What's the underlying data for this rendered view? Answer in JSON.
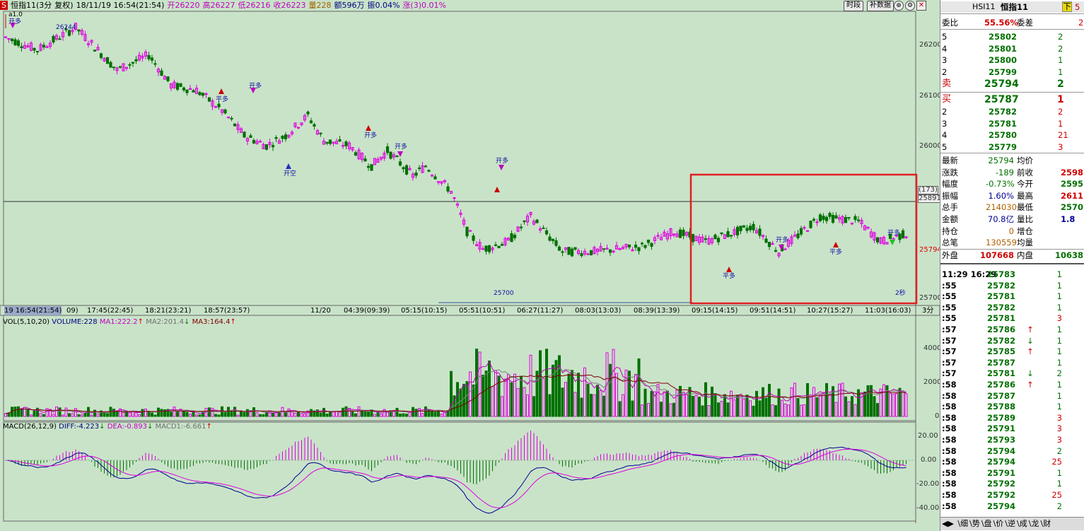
{
  "header": {
    "symbol_marker": "S",
    "title": "恒指11(3分",
    "adjust": "复权)",
    "datetime": "18/11/19 16:54(21:54)",
    "open": "开26220",
    "high": "高26227",
    "low": "低26216",
    "close": "收26223",
    "volume": "量228",
    "amount": "额596万",
    "amplitude": "振0.04%",
    "change": "涨(3)0.01%",
    "btn_time": "时段",
    "btn_fill": "补数据"
  },
  "price_axis": [
    "26200",
    "26100",
    "26000",
    "25700"
  ],
  "price_axis_marker_top": "(173)",
  "price_axis_marker_value": "25891",
  "price_axis_current": "25794",
  "annotations": {
    "a1": "a1.0",
    "high_label": "26244",
    "low_label": "25700",
    "sec_label": "2秒",
    "open_long": "开多",
    "open_short": "开空",
    "one": "1",
    "neg_one": "-1",
    "flat_long": "平多"
  },
  "time_axis": [
    "19 16:54(21:54)",
    "09)",
    "17:45(22:45)",
    "18:21(23:21)",
    "18:57(23:57)",
    "11/20",
    "04:39(09:39)",
    "05:15(10:15)",
    "05:51(10:51)",
    "06:27(11:27)",
    "08:03(13:03)",
    "08:39(13:39)",
    "09:15(14:15)",
    "09:51(14:51)",
    "10:27(15:27)",
    "11:03(16:03)",
    "3分"
  ],
  "vol_legend": {
    "label": "VOL(5,10,20)",
    "volume": "VOLUME:228",
    "ma1": "MA1:222.2",
    "ma2": "MA2:201.4",
    "ma3": "MA3:164.4"
  },
  "vol_axis": [
    "4000",
    "2000",
    "0"
  ],
  "macd_legend": {
    "label": "MACD(26,12,9)",
    "diff": "DIFF:-4.223",
    "dea": "DEA:-0.893",
    "macd": "MACD1:-6.661"
  },
  "macd_axis": [
    "20.00",
    "0.00",
    "-20.00",
    "-40.00"
  ],
  "quote": {
    "code": "HSI11",
    "name": "恒指11",
    "down_btn": "下",
    "up_btn": "5",
    "ratio_label": "委比",
    "ratio_value": "55.56%",
    "diff_label": "委差",
    "diff_value": "2",
    "sell_levels": [
      {
        "lvl": "5",
        "price": "25802",
        "vol": "2"
      },
      {
        "lvl": "4",
        "price": "25801",
        "vol": "2"
      },
      {
        "lvl": "3",
        "price": "25800",
        "vol": "1"
      },
      {
        "lvl": "2",
        "price": "25799",
        "vol": "1"
      },
      {
        "lvl": "卖",
        "price": "25794",
        "vol": "2"
      }
    ],
    "buy_levels": [
      {
        "lvl": "买",
        "price": "25787",
        "vol": "1"
      },
      {
        "lvl": "2",
        "price": "25782",
        "vol": "2"
      },
      {
        "lvl": "3",
        "price": "25781",
        "vol": "1"
      },
      {
        "lvl": "4",
        "price": "25780",
        "vol": "21"
      },
      {
        "lvl": "5",
        "price": "25779",
        "vol": "3"
      }
    ],
    "stats": [
      {
        "l1": "最新",
        "v1": "25794",
        "l2": "均价",
        "v2": ""
      },
      {
        "l1": "涨跌",
        "v1": "-189",
        "l2": "前收",
        "v2": "2598"
      },
      {
        "l1": "幅度",
        "v1": "-0.73%",
        "l2": "今开",
        "v2": "2595"
      },
      {
        "l1": "振幅",
        "v1": "1.60%",
        "l2": "最高",
        "v2": "2611"
      },
      {
        "l1": "总手",
        "v1": "214030",
        "l2": "最低",
        "v2": "2570"
      },
      {
        "l1": "金额",
        "v1": "70.8亿",
        "l2": "量比",
        "v2": "1.8"
      },
      {
        "l1": "持仓",
        "v1": "0",
        "l2": "增仓",
        "v2": ""
      },
      {
        "l1": "总笔",
        "v1": "130559",
        "l2": "均量",
        "v2": ""
      }
    ],
    "outer_label": "外盘",
    "outer_value": "107668",
    "inner_label": "内盘",
    "inner_value": "10638",
    "ticks": [
      {
        "t": "11:29 16:29",
        "p": "25783",
        "a": "",
        "v": "1"
      },
      {
        "t": ":55",
        "p": "25782",
        "a": "",
        "v": "1"
      },
      {
        "t": ":55",
        "p": "25781",
        "a": "",
        "v": "1"
      },
      {
        "t": ":55",
        "p": "25782",
        "a": "",
        "v": "1"
      },
      {
        "t": ":55",
        "p": "25781",
        "a": "",
        "v": "3"
      },
      {
        "t": ":57",
        "p": "25786",
        "a": "↑",
        "v": "1"
      },
      {
        "t": ":57",
        "p": "25782",
        "a": "↓",
        "v": "1"
      },
      {
        "t": ":57",
        "p": "25785",
        "a": "↑",
        "v": "1"
      },
      {
        "t": ":57",
        "p": "25787",
        "a": "",
        "v": "1"
      },
      {
        "t": ":57",
        "p": "25781",
        "a": "↓",
        "v": "2"
      },
      {
        "t": ":58",
        "p": "25786",
        "a": "↑",
        "v": "1"
      },
      {
        "t": ":58",
        "p": "25787",
        "a": "",
        "v": "1"
      },
      {
        "t": ":58",
        "p": "25788",
        "a": "",
        "v": "1"
      },
      {
        "t": ":58",
        "p": "25789",
        "a": "",
        "v": "3"
      },
      {
        "t": ":58",
        "p": "25791",
        "a": "",
        "v": "3"
      },
      {
        "t": ":58",
        "p": "25793",
        "a": "",
        "v": "3"
      },
      {
        "t": ":58",
        "p": "25794",
        "a": "",
        "v": "2"
      },
      {
        "t": ":58",
        "p": "25794",
        "a": "",
        "v": "25"
      },
      {
        "t": ":58",
        "p": "25791",
        "a": "",
        "v": "1"
      },
      {
        "t": ":58",
        "p": "25792",
        "a": "",
        "v": "1"
      },
      {
        "t": ":58",
        "p": "25792",
        "a": "",
        "v": "25"
      },
      {
        "t": ":58",
        "p": "25794",
        "a": "",
        "v": "2"
      }
    ],
    "tabs": [
      "细",
      "势",
      "盘",
      "价",
      "逆",
      "成",
      "龙",
      "财"
    ]
  },
  "colors": {
    "bg": "#c9e3c9",
    "up": "#e000e0",
    "down": "#007000",
    "highlight": "#e02020",
    "diff_line": "#000090",
    "dea_line": "#e000e0"
  }
}
